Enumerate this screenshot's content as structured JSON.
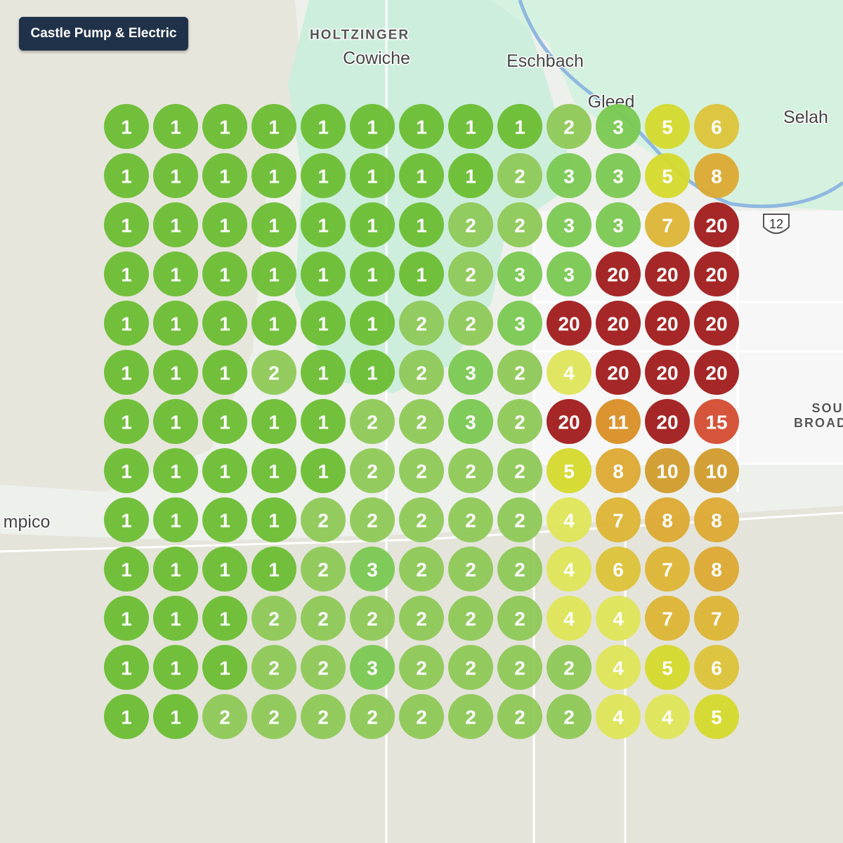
{
  "business": {
    "name": "Castle Pump & Electric"
  },
  "map_labels": [
    "HOLTZINGER",
    "Cowiche",
    "Eschbach",
    "Gleed",
    "Selah",
    "12",
    "mpico",
    "SOU",
    "BROAD"
  ],
  "grid": {
    "rows": [
      [
        1,
        1,
        1,
        1,
        1,
        1,
        1,
        1,
        1,
        2,
        3,
        5,
        6
      ],
      [
        1,
        1,
        1,
        1,
        1,
        1,
        1,
        1,
        2,
        3,
        3,
        5,
        8
      ],
      [
        1,
        1,
        1,
        1,
        1,
        1,
        1,
        2,
        2,
        3,
        3,
        7,
        20
      ],
      [
        1,
        1,
        1,
        1,
        1,
        1,
        1,
        2,
        3,
        3,
        20,
        20,
        20
      ],
      [
        1,
        1,
        1,
        1,
        1,
        1,
        2,
        2,
        3,
        20,
        20,
        20,
        20
      ],
      [
        1,
        1,
        1,
        2,
        1,
        1,
        2,
        3,
        2,
        4,
        20,
        20,
        20
      ],
      [
        1,
        1,
        1,
        1,
        1,
        2,
        2,
        3,
        2,
        20,
        11,
        20,
        15
      ],
      [
        1,
        1,
        1,
        1,
        1,
        2,
        2,
        2,
        2,
        5,
        8,
        10,
        10
      ],
      [
        1,
        1,
        1,
        1,
        2,
        2,
        2,
        2,
        2,
        4,
        7,
        8,
        8
      ],
      [
        1,
        1,
        1,
        1,
        2,
        3,
        2,
        2,
        2,
        4,
        6,
        7,
        8
      ],
      [
        1,
        1,
        1,
        2,
        2,
        2,
        2,
        2,
        2,
        4,
        4,
        7,
        7
      ],
      [
        1,
        1,
        1,
        2,
        2,
        3,
        2,
        2,
        2,
        2,
        4,
        5,
        6
      ],
      [
        1,
        1,
        2,
        2,
        2,
        2,
        2,
        2,
        2,
        2,
        4,
        4,
        5
      ]
    ]
  }
}
